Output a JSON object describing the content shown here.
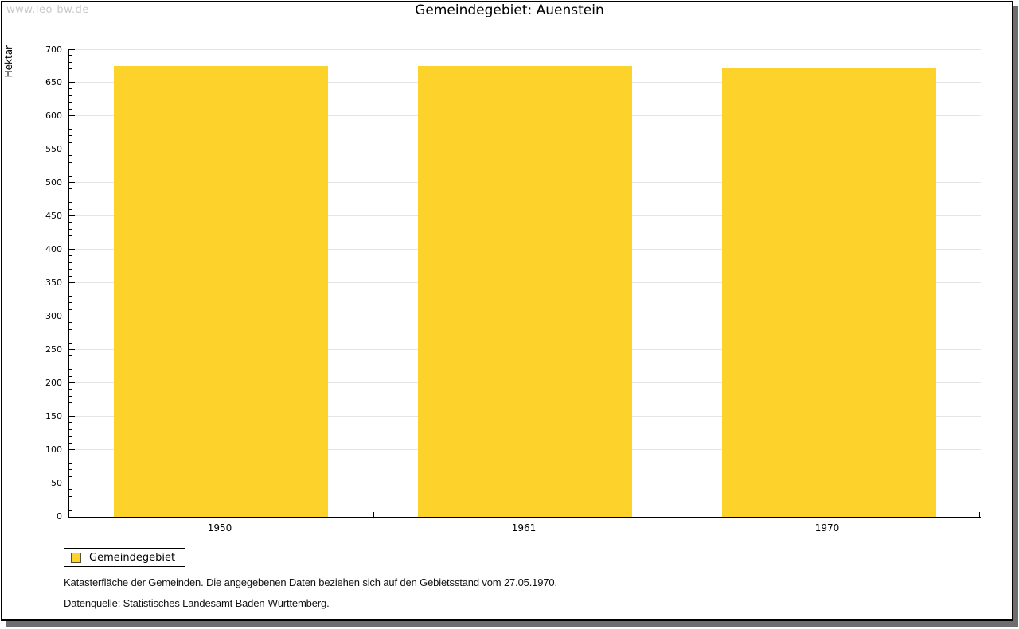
{
  "watermark": "www.leo-bw.de",
  "title": "Gemeindegebiet: Auenstein",
  "chart_data": {
    "type": "bar",
    "title": "Gemeindegebiet: Auenstein",
    "categories": [
      "1950",
      "1961",
      "1970"
    ],
    "series": [
      {
        "name": "Gemeindegebiet",
        "values": [
          675,
          675,
          672
        ]
      }
    ],
    "xlabel": "",
    "ylabel": "Hektar",
    "ylim": [
      0,
      700
    ],
    "y_major_ticks": [
      0,
      50,
      100,
      150,
      200,
      250,
      300,
      350,
      400,
      450,
      500,
      550,
      600,
      650,
      700
    ],
    "y_minor_step": 10,
    "grid": true,
    "gridline_color": "#e4e4e4",
    "bar_color": "#fdd32b",
    "legend_position": "bottom-left"
  },
  "legend": {
    "label": "Gemeindegebiet",
    "swatch_color": "#fdd32b"
  },
  "footnotes": {
    "line1": "Katasterfläche der Gemeinden. Die angegebenen Daten beziehen sich auf den Gebietsstand vom 27.05.1970.",
    "line2": "Datenquelle: Statistisches Landesamt Baden-Württemberg."
  }
}
